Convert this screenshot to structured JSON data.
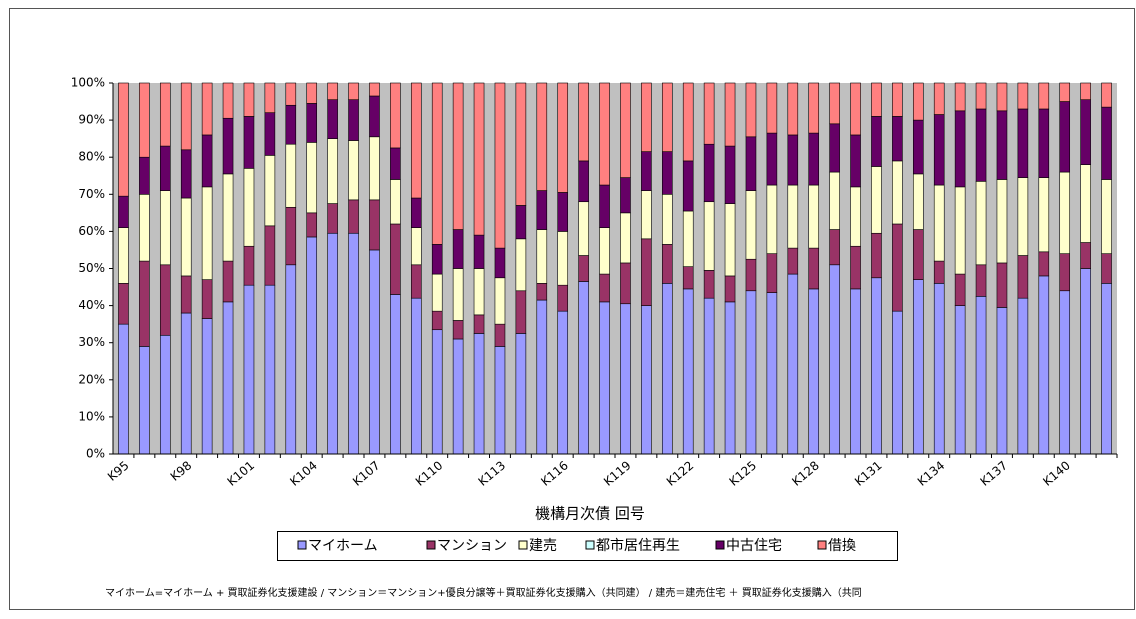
{
  "chart_data": {
    "type": "stacked_bar_percent",
    "x_label": "機構月次債 回号",
    "note": "マイホーム=マイホーム + 買取証券化支援建設 / マンション＝マンション+優良分譲等＋買取証券化支援購入（共同建） / 建売＝建売住宅 ＋ 買取証券化支援購入（共同",
    "categories": [
      "K95",
      null,
      null,
      "K98",
      null,
      null,
      "K101",
      null,
      null,
      "K104",
      null,
      null,
      "K107",
      null,
      null,
      "K110",
      null,
      null,
      "K113",
      null,
      null,
      "K116",
      null,
      null,
      "K119",
      null,
      null,
      "K122",
      null,
      null,
      "K125",
      null,
      null,
      "K128",
      null,
      null,
      "K131",
      null,
      null,
      "K134",
      null,
      null,
      "K137",
      null,
      null,
      "K140",
      null,
      null
    ],
    "series": [
      {
        "name": "マイホーム",
        "color": "#9999ff",
        "values": [
          35,
          29,
          32,
          38,
          36.5,
          41,
          45.5,
          45.5,
          51,
          58.5,
          59.5,
          59.5,
          55,
          43,
          42,
          33.5,
          31,
          32.5,
          29,
          32.5,
          41.5,
          38.5,
          46.5,
          41,
          40.5,
          40,
          46,
          44.5,
          42,
          41,
          44,
          43.5,
          48.5,
          44.5,
          51,
          44.5,
          47.5,
          38.5,
          47,
          46,
          40,
          42.5,
          39.5,
          42,
          48,
          44,
          50,
          46
        ]
      },
      {
        "name": "マンション",
        "color": "#993366",
        "values": [
          11,
          23,
          19,
          10,
          10.5,
          11,
          10.5,
          16,
          15.5,
          6.5,
          8,
          9,
          13.5,
          19,
          9,
          5,
          5,
          5,
          6,
          11.5,
          4.5,
          7,
          7,
          7.5,
          11,
          18,
          10.5,
          6,
          7.5,
          7,
          8.5,
          10.5,
          7,
          11,
          9.5,
          11.5,
          12,
          23.5,
          13.5,
          6,
          8.5,
          8.5,
          12,
          11.5,
          6.5,
          10,
          7,
          8
        ]
      },
      {
        "name": "建売",
        "color": "#ffffcc",
        "values": [
          15,
          18,
          20,
          21,
          25,
          23.5,
          21,
          19,
          17,
          19,
          17.5,
          16,
          17,
          12,
          10,
          10,
          14,
          12.5,
          12.5,
          14,
          14.5,
          14.5,
          14.5,
          12.5,
          13.5,
          13,
          13.5,
          15,
          18.5,
          19.5,
          18.5,
          18.5,
          17,
          17,
          15.5,
          16,
          18,
          17,
          15,
          20.5,
          23.5,
          22.5,
          22.5,
          21,
          20,
          22,
          21,
          20
        ]
      },
      {
        "name": "都市居住再生",
        "color": "#ccffff",
        "values": [
          0,
          0,
          0,
          0,
          0,
          0,
          0,
          0,
          0,
          0,
          0,
          0,
          0,
          0,
          0,
          0,
          0,
          0,
          0,
          0,
          0,
          0,
          0,
          0,
          0,
          0,
          0,
          0,
          0,
          0,
          0,
          0,
          0,
          0,
          0,
          0,
          0,
          0,
          0,
          0,
          0,
          0,
          0,
          0,
          0,
          0,
          0,
          0
        ]
      },
      {
        "name": "中古住宅",
        "color": "#660066",
        "values": [
          8.5,
          10,
          12,
          13,
          14,
          15,
          14,
          11.5,
          10.5,
          10.5,
          10.5,
          11,
          11,
          8.5,
          8,
          8,
          10.5,
          9,
          8,
          9,
          10.5,
          10.5,
          11,
          11.5,
          9.5,
          10.5,
          11.5,
          13.5,
          15.5,
          15.5,
          14.5,
          14,
          13.5,
          14,
          13,
          14,
          13.5,
          12,
          14.5,
          19,
          20.5,
          19.5,
          18.5,
          18.5,
          18.5,
          19,
          17.5,
          19.5
        ]
      },
      {
        "name": "借換",
        "color": "#ff8080",
        "values": [
          30.5,
          20,
          17,
          18,
          14,
          9.5,
          9,
          8,
          6,
          5.5,
          4.5,
          4.5,
          3.5,
          17.5,
          31,
          43.5,
          39.5,
          41,
          44.5,
          33,
          29,
          29.5,
          21,
          27.5,
          25.5,
          18.5,
          18.5,
          21,
          16.5,
          17,
          14.5,
          13.5,
          14,
          13.5,
          11,
          14,
          9,
          9,
          10,
          8.5,
          7.5,
          7,
          7.5,
          7,
          7,
          5,
          4.5,
          6.5
        ]
      }
    ],
    "ylim": [
      0,
      100
    ],
    "yticks": [
      {
        "value": 0,
        "label": "0%"
      },
      {
        "value": 10,
        "label": "10%"
      },
      {
        "value": 20,
        "label": "20%"
      },
      {
        "value": 30,
        "label": "30%"
      },
      {
        "value": 40,
        "label": "40%"
      },
      {
        "value": 50,
        "label": "50%"
      },
      {
        "value": 60,
        "label": "60%"
      },
      {
        "value": 70,
        "label": "70%"
      },
      {
        "value": 80,
        "label": "80%"
      },
      {
        "value": 90,
        "label": "90%"
      },
      {
        "value": 100,
        "label": "100%"
      }
    ],
    "plot_background": "#c0c0c0"
  }
}
